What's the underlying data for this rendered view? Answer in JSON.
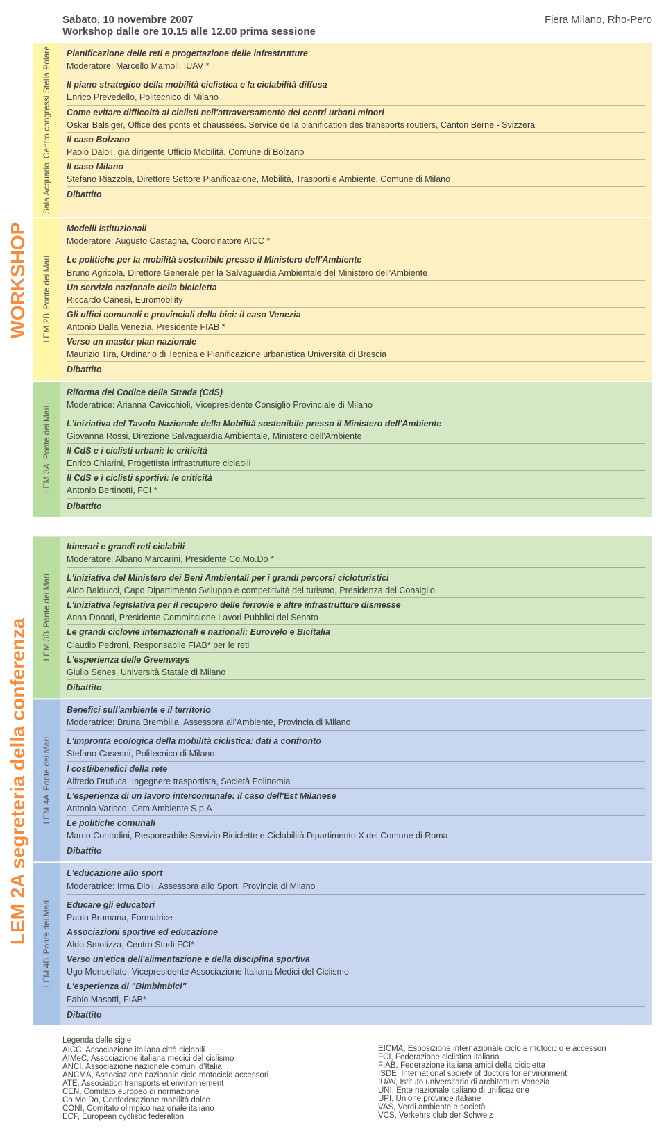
{
  "header": {
    "date": "Sabato, 10 novembre 2007",
    "time": "Workshop dalle ore 10.15 alle 12.00 prima sessione",
    "venue": "Fiera Milano, Rho-Pero"
  },
  "bigLabels": {
    "top": "WORKSHOP",
    "bottom": "LEM 2A segreteria della conferenza"
  },
  "colors": {
    "yellow_room": "#fff6a8",
    "yellow_content": "#fdf0c2",
    "green_room": "#b9dd9e",
    "green_content": "#d3e8c3",
    "blue_room": "#a9c3e6",
    "blue_content": "#c8d7ef"
  },
  "legend": {
    "title": "Legenda delle sigle",
    "left": [
      "AICC, Associazione italiana città ciclabili",
      "AIMeC, Associazione italiana medici del ciclismo",
      "ANCI, Associazione nazionale comuni d'Italia",
      "ANCMA, Associazione nazionale ciclo motociclo accessori",
      "ATE, Association transports et environnement",
      "CEN, Comitato europeo di normazione",
      "Co.Mo.Do, Confederazione mobilità dolce",
      "CONI, Comitato olimpico nazionale italiano",
      "ECF, European cyclistic federation"
    ],
    "right": [
      "EICMA, Esposizione internazionale ciclo e motociclo e accessori",
      "FCI, Federazione ciclistica italiana",
      "FIAB, Federazione italiana amici della bicicletta",
      "ISDE, International society of doctors for environment",
      "IUAV, Istituto universitario di architettura Venezia",
      "UNI, Ente nazionale italiano di unificazione",
      "UPI, Unione province italiane",
      "VAS, Verdi ambiente e società",
      "VCS, Verkehrs club der Schweiz"
    ]
  },
  "sessions": [
    {
      "group": "top",
      "roomBg": "yellow_room",
      "contentBg": "yellow_content",
      "roomCode": "Sala Acquario",
      "roomName": "Centro congressi Stella Polare",
      "title": "Pianificazione delle reti e progettazione delle infrastrutture",
      "moderator": "Moderatore: Marcello Mamoli, IUAV *",
      "items": [
        {
          "t": "Il piano strategico della mobilità ciclistica e la ciclabilità diffusa",
          "s": "Enrico Prevedello, Politecnico di Milano"
        },
        {
          "t": "Come evitare difficoltà ai ciclisti nell'attraversamento dei centri urbani minori",
          "s": "Oskar Balsiger, Office des ponts et chaussées. Service de la planification des transports routiers, Canton Berne - Svizzera"
        },
        {
          "t": "Il caso Bolzano",
          "s": "Paolo Daloli, già dirigente Ufficio Mobilità, Comune di Bolzano"
        },
        {
          "t": "Il caso Milano",
          "s": "Stefano Riazzola, Direttore Settore Pianificazione, Mobilità, Trasporti e Ambiente, Comune di Milano"
        }
      ],
      "end": "Dibattito"
    },
    {
      "group": "top",
      "roomBg": "yellow_room",
      "contentBg": "yellow_content",
      "roomCode": "LEM 2B",
      "roomName": "Ponte dei Mari",
      "title": "Modelli istituzionali",
      "moderator": "Moderatore: Augusto Castagna, Coordinatore AICC *",
      "items": [
        {
          "t": "Le politiche per la mobilità sostenibile presso il Ministero dell'Ambiente",
          "s": "Bruno Agricola, Direttore Generale per la Salvaguardia Ambientale del Ministero dell'Ambiente"
        },
        {
          "t": "Un servizio nazionale della bicicletta",
          "s": "Riccardo Canesi, Euromobility"
        },
        {
          "t": "Gli uffici comunali e provinciali della bici: il caso Venezia",
          "s": "Antonio Dalla Venezia, Presidente FIAB *"
        },
        {
          "t": "Verso un master plan nazionale",
          "s": "Maurizio Tira, Ordinario di Tecnica e Pianificazione urbanistica Università di Brescia"
        }
      ],
      "end": "Dibattito"
    },
    {
      "group": "top",
      "roomBg": "green_room",
      "contentBg": "green_content",
      "roomCode": "LEM 3A",
      "roomName": "Ponte dei Mari",
      "title": "Riforma del Codice della Strada (CdS)",
      "moderator": "Moderatrice: Arianna Cavicchioli, Vicepresidente Consiglio Provinciale di Milano",
      "items": [
        {
          "t": "L'iniziativa del Tavolo Nazionale della Mobilità sostenibile presso il Ministero dell'Ambiente",
          "s": "Giovanna Rossi, Direzione Salvaguardia Ambientale, Ministero dell'Ambiente"
        },
        {
          "t": "Il CdS e i ciclisti urbani: le criticità",
          "s": "Enrico Chiarini, Progettista infrastrutture ciclabili"
        },
        {
          "t": "Il CdS e i ciclisti sportivi: le criticità",
          "s": "Antonio Bertinotti, FCI *"
        }
      ],
      "end": "Dibattito"
    },
    {
      "group": "bottom",
      "roomBg": "green_room",
      "contentBg": "green_content",
      "roomCode": "LEM 3B",
      "roomName": "Ponte dei Mari",
      "title": "Itinerari e grandi reti ciclabili",
      "moderator": "Moderatore: Albano Marcarini, Presidente Co.Mo.Do *",
      "items": [
        {
          "t": "L'iniziativa del Ministero dei Beni Ambientali per i grandi percorsi cicloturistici",
          "s": "Aldo Balducci, Capo Dipartimento Sviluppo e competitività del turismo, Presidenza del Consiglio"
        },
        {
          "t": "L'iniziativa legislativa per il recupero delle ferrovie e altre infrastrutture dismesse",
          "s": "Anna Donati, Presidente Commissione Lavori Pubblici del Senato"
        },
        {
          "t": "Le grandi ciclovie internazionali e nazionali: Eurovelo e Bicitalia",
          "s": "Claudio Pedroni, Responsabile FIAB* per le reti"
        },
        {
          "t": "L'esperienza delle Greenways",
          "s": "Giulio Senes, Università Statale di Milano"
        }
      ],
      "end": "Dibattito"
    },
    {
      "group": "bottom",
      "roomBg": "blue_room",
      "contentBg": "blue_content",
      "roomCode": "LEM 4A",
      "roomName": "Ponte dei Mari",
      "title": "Benefici sull'ambiente e il territorio",
      "moderator": "Moderatrice: Bruna Brembilla, Assessora all'Ambiente, Provincia di Milano",
      "items": [
        {
          "t": "L'impronta ecologica della mobilità ciclistica: dati a confronto",
          "s": "Stefano Caserini, Politecnico di Milano"
        },
        {
          "t": "I costi/benefici della rete",
          "s": "Alfredo Drufuca, Ingegnere trasportista, Società Polinomia"
        },
        {
          "t": "L'esperienza di un lavoro intercomunale: il caso dell'Est Milanese",
          "s": "Antonio Varisco, Cem Ambiente S.p.A"
        },
        {
          "t": "Le politiche comunali",
          "s": "Marco Contadini, Responsabile Servizio Biciclette e Ciclabilità Dipartimento X del Comune di Roma"
        }
      ],
      "end": "Dibattito"
    },
    {
      "group": "bottom",
      "roomBg": "blue_room",
      "contentBg": "blue_content",
      "roomCode": "LEM 4B",
      "roomName": "Ponte dei Mari",
      "title": "L'educazione allo sport",
      "moderator": "Moderatrice: Irma Dioli, Assessora allo Sport, Provincia di Milano",
      "items": [
        {
          "t": "Educare gli educatori",
          "s": "Paola Brumana, Formatrice"
        },
        {
          "t": "Associazioni sportive ed educazione",
          "s": "Aldo Smolizza, Centro Studi FCI*"
        },
        {
          "t": "Verso un'etica dell'alimentazione e della disciplina sportiva",
          "s": "Ugo Monsellato, Vicepresidente Associazione Italiana Medici del Ciclismo"
        },
        {
          "t": "L'esperienza di \"Bimbimbici\"",
          "s": "Fabio Masotti, FIAB*"
        }
      ],
      "end": "Dibattito"
    }
  ]
}
